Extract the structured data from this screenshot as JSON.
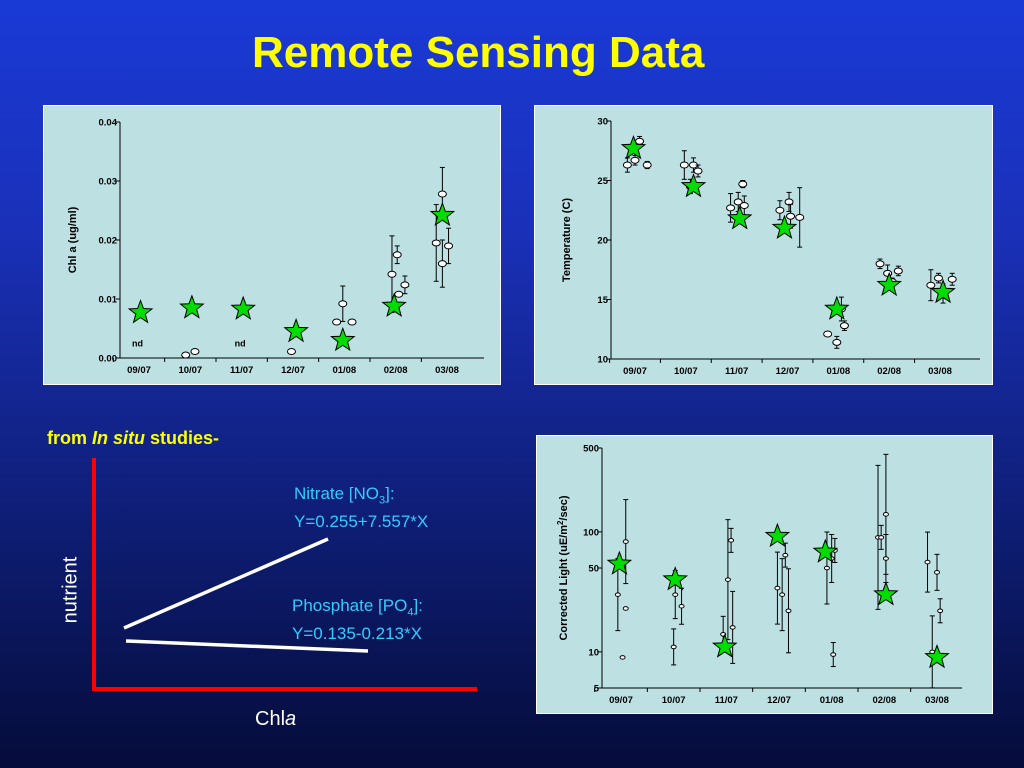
{
  "slide": {
    "title": "Remote Sensing Data",
    "in_situ_label": "from ",
    "in_situ_italic": "In situ",
    "in_situ_suffix": " studies-",
    "nitrate": {
      "name": "Nitrate [NO",
      "sub": "3",
      "close": "]:",
      "equation": "Y=0.255+7.557*X"
    },
    "phosphate": {
      "name": "Phosphate [PO",
      "sub": "4",
      "close": "]:",
      "equation": "Y=0.135-0.213*X"
    },
    "y_axis_label": "nutrient",
    "x_axis_label": "Chl",
    "x_axis_label_italic": "a"
  },
  "colors": {
    "title": "#ffff00",
    "equation_text": "#33ccff",
    "axis_red": "#ff0000",
    "panel_bg": "#bde0e2",
    "star_fill": "#00dd00"
  },
  "chart_data": [
    {
      "type": "scatter",
      "id": "chla",
      "xlabel": "",
      "ylabel": "Chl a (ug/ml)",
      "ylim": [
        0,
        0.04
      ],
      "yticks": [
        "0.00",
        "0.01",
        "0.02",
        "0.03",
        "0.04"
      ],
      "yticks_values": [
        0,
        0.01,
        0.02,
        0.03,
        0.04
      ],
      "categories": [
        "09/07",
        "10/07",
        "11/07",
        "12/07",
        "01/08",
        "02/08",
        "03/08"
      ],
      "annotations": [
        {
          "category": 0,
          "text": "nd",
          "y": 0.0053
        },
        {
          "category": 2,
          "text": "nd",
          "y": 0.0053
        }
      ],
      "series": [
        {
          "type": "ovals",
          "points": [
            {
              "c": 1,
              "dx": -0.15,
              "y": 0.0005,
              "err": 0
            },
            {
              "c": 1,
              "dx": 0.15,
              "y": 0.0011,
              "err": 0
            },
            {
              "c": 3,
              "dx": -0.05,
              "y": 0.0011,
              "err": 0
            },
            {
              "c": 4,
              "dx": -0.25,
              "y": 0.0061,
              "err": 0
            },
            {
              "c": 4,
              "dx": -0.05,
              "y": 0.0092,
              "err": 0.003
            },
            {
              "c": 4,
              "dx": 0.25,
              "y": 0.0061,
              "err": 0
            },
            {
              "c": 5,
              "dx": -0.12,
              "y": 0.0142,
              "err": 0.0065
            },
            {
              "c": 5,
              "dx": 0.05,
              "y": 0.0175,
              "err": 0.0015
            },
            {
              "c": 5,
              "dx": 0.1,
              "y": 0.0108,
              "err": 0
            },
            {
              "c": 5,
              "dx": 0.3,
              "y": 0.0124,
              "err": 0.0015
            },
            {
              "c": 6,
              "dx": -0.35,
              "y": 0.0195,
              "err": 0.0065
            },
            {
              "c": 6,
              "dx": -0.15,
              "y": 0.016,
              "err": 0.004
            },
            {
              "c": 6,
              "dx": -0.15,
              "y": 0.0278,
              "err": 0.0045
            },
            {
              "c": 6,
              "dx": 0.05,
              "y": 0.019,
              "err": 0.003
            }
          ]
        },
        {
          "type": "stars",
          "points": [
            {
              "c": 0,
              "dx": 0.05,
              "y": 0.0077
            },
            {
              "c": 1,
              "dx": 0.05,
              "y": 0.0085
            },
            {
              "c": 2,
              "dx": 0.05,
              "y": 0.0083
            },
            {
              "c": 3,
              "dx": 0.1,
              "y": 0.0045
            },
            {
              "c": 4,
              "dx": -0.05,
              "y": 0.003
            },
            {
              "c": 5,
              "dx": -0.05,
              "y": 0.0088
            },
            {
              "c": 6,
              "dx": -0.15,
              "y": 0.0242
            }
          ]
        }
      ]
    },
    {
      "type": "scatter",
      "id": "temp",
      "xlabel": "",
      "ylabel": "Temperature (C)",
      "ylim": [
        10,
        30
      ],
      "yticks": [
        "10",
        "15",
        "20",
        "25",
        "30"
      ],
      "yticks_values": [
        10,
        15,
        20,
        25,
        30
      ],
      "categories": [
        "09/07",
        "10/07",
        "11/07",
        "12/07",
        "01/08",
        "02/08",
        "03/08"
      ],
      "series": [
        {
          "type": "ovals",
          "points": [
            {
              "c": 0,
              "dx": -0.25,
              "y": 26.3,
              "err": 0.6
            },
            {
              "c": 0,
              "dx": 0.0,
              "y": 26.7,
              "err": 0.4
            },
            {
              "c": 0,
              "dx": 0.15,
              "y": 28.3,
              "err": 0.4
            },
            {
              "c": 0,
              "dx": 0.4,
              "y": 26.3,
              "err": 0.3
            },
            {
              "c": 1,
              "dx": -0.05,
              "y": 26.3,
              "err": 1.2
            },
            {
              "c": 1,
              "dx": 0.15,
              "y": 24.5,
              "err": 0.6
            },
            {
              "c": 1,
              "dx": 0.25,
              "y": 26.3,
              "err": 0.6
            },
            {
              "c": 1,
              "dx": 0.4,
              "y": 25.8,
              "err": 0.5
            },
            {
              "c": 2,
              "dx": -0.2,
              "y": 22.7,
              "err": 1.2
            },
            {
              "c": 2,
              "dx": 0.05,
              "y": 23.2,
              "err": 0.8
            },
            {
              "c": 2,
              "dx": 0.2,
              "y": 24.7,
              "err": 0.3
            },
            {
              "c": 2,
              "dx": 0.25,
              "y": 22.9,
              "err": 0.8
            },
            {
              "c": 3,
              "dx": -0.25,
              "y": 22.5,
              "err": 0.8
            },
            {
              "c": 3,
              "dx": 0.05,
              "y": 23.2,
              "err": 0.8
            },
            {
              "c": 3,
              "dx": 0.1,
              "y": 22.0,
              "err": 1.0
            },
            {
              "c": 3,
              "dx": 0.4,
              "y": 21.9,
              "err": 2.5
            },
            {
              "c": 4,
              "dx": -0.35,
              "y": 12.1,
              "err": 0
            },
            {
              "c": 4,
              "dx": -0.05,
              "y": 11.4,
              "err": 0.5
            },
            {
              "c": 4,
              "dx": 0.1,
              "y": 14.2,
              "err": 1.0
            },
            {
              "c": 4,
              "dx": 0.2,
              "y": 12.8,
              "err": 0.4
            },
            {
              "c": 5,
              "dx": -0.3,
              "y": 18.0,
              "err": 0.4
            },
            {
              "c": 5,
              "dx": -0.05,
              "y": 17.2,
              "err": 0.7
            },
            {
              "c": 5,
              "dx": 0.1,
              "y": 16.5,
              "err": 0.3
            },
            {
              "c": 5,
              "dx": 0.3,
              "y": 17.4,
              "err": 0.4
            },
            {
              "c": 6,
              "dx": -0.3,
              "y": 16.2,
              "err": 1.3
            },
            {
              "c": 6,
              "dx": -0.05,
              "y": 16.8,
              "err": 0.4
            },
            {
              "c": 6,
              "dx": 0.1,
              "y": 15.5,
              "err": 0.8
            },
            {
              "c": 6,
              "dx": 0.4,
              "y": 16.7,
              "err": 0.5
            }
          ]
        },
        {
          "type": "stars",
          "points": [
            {
              "c": 0,
              "dx": -0.05,
              "y": 27.7
            },
            {
              "c": 1,
              "dx": 0.25,
              "y": 24.5
            },
            {
              "c": 2,
              "dx": 0.1,
              "y": 21.8
            },
            {
              "c": 3,
              "dx": -0.1,
              "y": 21.0
            },
            {
              "c": 4,
              "dx": -0.05,
              "y": 14.2
            },
            {
              "c": 5,
              "dx": 0.0,
              "y": 16.2
            },
            {
              "c": 6,
              "dx": 0.1,
              "y": 15.6
            }
          ]
        }
      ]
    },
    {
      "type": "scatter",
      "id": "light",
      "xlabel": "",
      "ylabel": "Corrected Light (uE/m2/sec)",
      "ylabel_main": "Corrected Light (uE/m",
      "ylabel_sup": "2",
      "ylabel_end": "/sec)",
      "log_scale": true,
      "ylim": [
        5,
        500
      ],
      "yticks": [
        "5",
        "10",
        "50",
        "100",
        "500"
      ],
      "yticks_values": [
        5,
        10,
        50,
        100,
        500
      ],
      "categories": [
        "09/07",
        "10/07",
        "11/07",
        "12/07",
        "01/08",
        "02/08",
        "03/08"
      ],
      "series": [
        {
          "type": "ovals",
          "points": [
            {
              "c": 0,
              "dx": -0.1,
              "y": 30,
              "err": 0.3
            },
            {
              "c": 0,
              "dx": 0.05,
              "y": 9,
              "err": 0
            },
            {
              "c": 0,
              "dx": 0.15,
              "y": 83,
              "err": 0.35
            },
            {
              "c": 0,
              "dx": 0.15,
              "y": 23,
              "err": 0
            },
            {
              "c": 1,
              "dx": 0.0,
              "y": 11,
              "err": 0.15
            },
            {
              "c": 1,
              "dx": 0.05,
              "y": 30,
              "err": 0.2
            },
            {
              "c": 1,
              "dx": 0.25,
              "y": 24,
              "err": 0.15
            },
            {
              "c": 2,
              "dx": -0.1,
              "y": 14,
              "err": 0.15
            },
            {
              "c": 2,
              "dx": 0.05,
              "y": 40,
              "err": 0.5
            },
            {
              "c": 2,
              "dx": 0.15,
              "y": 85,
              "err": 0.1
            },
            {
              "c": 2,
              "dx": 0.2,
              "y": 16,
              "err": 0.3
            },
            {
              "c": 3,
              "dx": -0.05,
              "y": 34,
              "err": 0.3
            },
            {
              "c": 3,
              "dx": 0.1,
              "y": 30,
              "err": 0.3
            },
            {
              "c": 3,
              "dx": 0.2,
              "y": 64,
              "err": 0.1
            },
            {
              "c": 3,
              "dx": 0.3,
              "y": 22,
              "err": 0.35
            },
            {
              "c": 4,
              "dx": -0.15,
              "y": 50,
              "err": 0.3
            },
            {
              "c": 4,
              "dx": 0.0,
              "y": 60,
              "err": 0.2
            },
            {
              "c": 4,
              "dx": 0.1,
              "y": 70,
              "err": 0.1
            },
            {
              "c": 4,
              "dx": 0.05,
              "y": 9.5,
              "err": 0.1
            },
            {
              "c": 5,
              "dx": -0.2,
              "y": 90,
              "err": 0.6
            },
            {
              "c": 5,
              "dx": -0.1,
              "y": 90,
              "err": 0.1
            },
            {
              "c": 5,
              "dx": 0.05,
              "y": 140,
              "err": 0.5
            },
            {
              "c": 5,
              "dx": 0.05,
              "y": 60,
              "err": 0.2
            },
            {
              "c": 6,
              "dx": -0.3,
              "y": 56,
              "err": 0.25
            },
            {
              "c": 6,
              "dx": -0.15,
              "y": 10,
              "err": 0.3
            },
            {
              "c": 6,
              "dx": 0.0,
              "y": 46,
              "err": 0.15
            },
            {
              "c": 6,
              "dx": 0.1,
              "y": 22,
              "err": 0.1
            }
          ]
        },
        {
          "type": "stars",
          "points": [
            {
              "c": 0,
              "dx": -0.05,
              "y": 54
            },
            {
              "c": 1,
              "dx": 0.05,
              "y": 40
            },
            {
              "c": 2,
              "dx": -0.05,
              "y": 11
            },
            {
              "c": 3,
              "dx": -0.05,
              "y": 92
            },
            {
              "c": 4,
              "dx": -0.2,
              "y": 68
            },
            {
              "c": 5,
              "dx": 0.05,
              "y": 30
            },
            {
              "c": 6,
              "dx": 0.0,
              "y": 9
            }
          ]
        }
      ]
    },
    {
      "type": "line",
      "id": "schematic",
      "xlabel": "Chl a",
      "ylabel": "nutrient",
      "series": [
        {
          "name": "Nitrate [NO3]",
          "equation": "Y=0.255+7.557*X",
          "trend": "increasing"
        },
        {
          "name": "Phosphate [PO4]",
          "equation": "Y=0.135-0.213*X",
          "trend": "decreasing"
        }
      ]
    }
  ]
}
